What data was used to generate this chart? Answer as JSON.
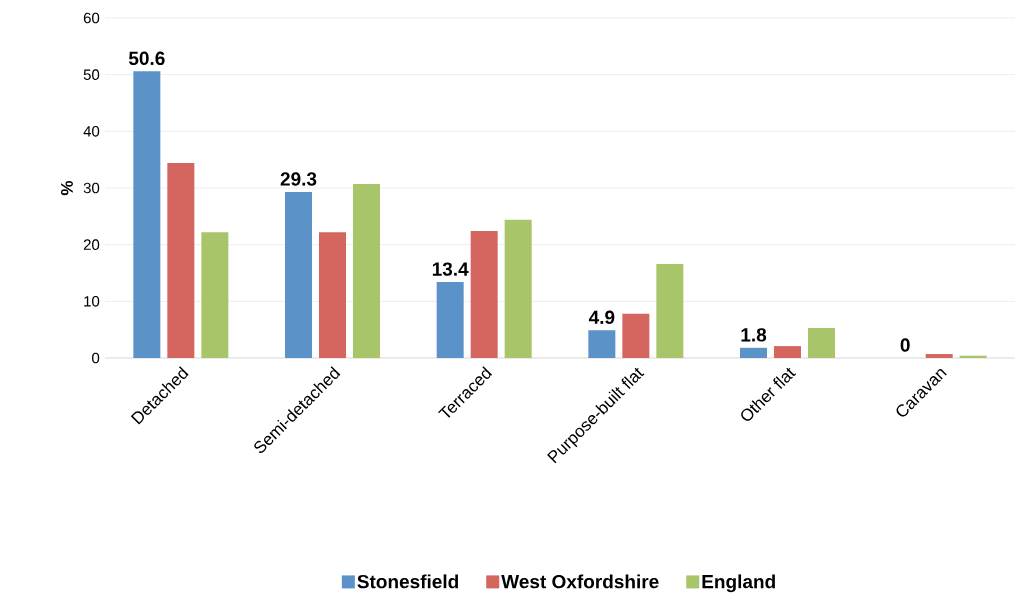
{
  "chart_data": {
    "type": "bar",
    "ylabel": "%",
    "categories": [
      "Detached",
      "Semi-detached",
      "Terraced",
      "Purpose-built flat",
      "Other flat",
      "Caravan"
    ],
    "series": [
      {
        "name": "Stonesfield",
        "color": "#5b93c8",
        "values": [
          50.6,
          29.3,
          13.4,
          4.9,
          1.8,
          0
        ],
        "value_labels": [
          "50.6",
          "29.3",
          "13.4",
          "4.9",
          "1.8",
          "0"
        ]
      },
      {
        "name": "West Oxfordshire",
        "color": "#d4665f",
        "values": [
          34.4,
          22.2,
          22.4,
          7.8,
          2.1,
          0.7
        ]
      },
      {
        "name": "England",
        "color": "#a9c56a",
        "values": [
          22.2,
          30.7,
          24.4,
          16.6,
          5.3,
          0.4
        ]
      }
    ],
    "ylim": [
      0,
      60
    ],
    "yticks": [
      0,
      10,
      20,
      30,
      40,
      50,
      60
    ],
    "grid": "y",
    "legend": "bottom"
  }
}
